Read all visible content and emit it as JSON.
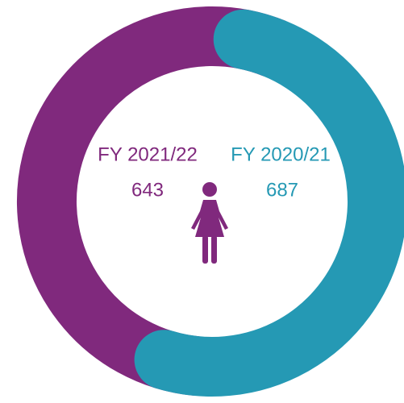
{
  "chart_data": {
    "type": "donut",
    "categories": [
      "FY 2020/21",
      "FY 2021/22"
    ],
    "values": [
      687,
      643
    ],
    "colors": [
      "#2599b4",
      "#80297d"
    ]
  }
}
